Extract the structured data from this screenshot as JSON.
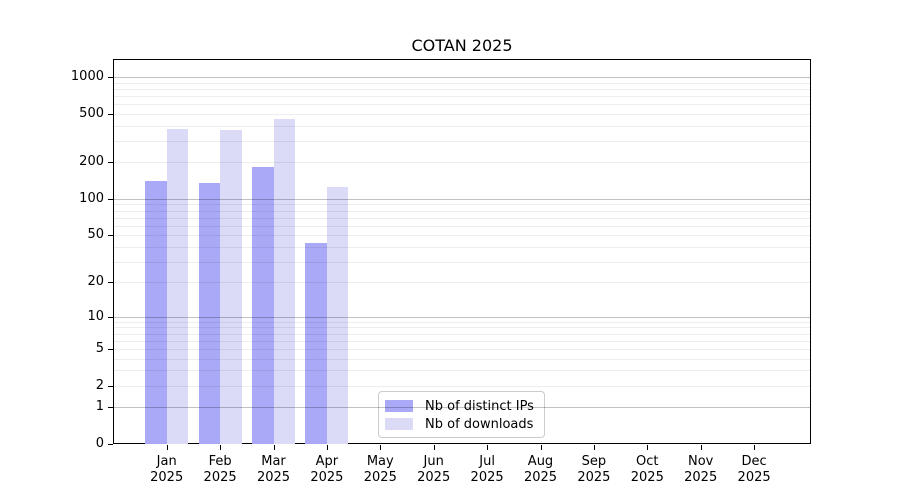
{
  "title": "COTAN 2025",
  "legend": {
    "items": [
      {
        "label": "Nb of distinct IPs",
        "color": "#a9a9f7"
      },
      {
        "label": "Nb of downloads",
        "color": "#dbdbf8"
      }
    ]
  },
  "chart_data": {
    "type": "bar",
    "title": "COTAN 2025",
    "year": "2025",
    "categories": [
      "Jan",
      "Feb",
      "Mar",
      "Apr",
      "May",
      "Jun",
      "Jul",
      "Aug",
      "Sep",
      "Oct",
      "Nov",
      "Dec"
    ],
    "series": [
      {
        "name": "Nb of distinct IPs",
        "color": "#a9a9f7",
        "values": [
          140,
          135,
          183,
          43,
          null,
          null,
          null,
          null,
          null,
          null,
          null,
          null
        ]
      },
      {
        "name": "Nb of downloads",
        "color": "#dbdbf8",
        "values": [
          377,
          370,
          452,
          126,
          null,
          null,
          null,
          null,
          null,
          null,
          null,
          null
        ]
      }
    ],
    "yscale": "log1p",
    "yticks": [
      0,
      1,
      2,
      5,
      10,
      20,
      50,
      100,
      200,
      500,
      1000
    ],
    "ylim": [
      0,
      1400
    ],
    "grid": "horizontal major+minor, drawn over bars",
    "legend_position": "inside plot, lower center-left"
  }
}
